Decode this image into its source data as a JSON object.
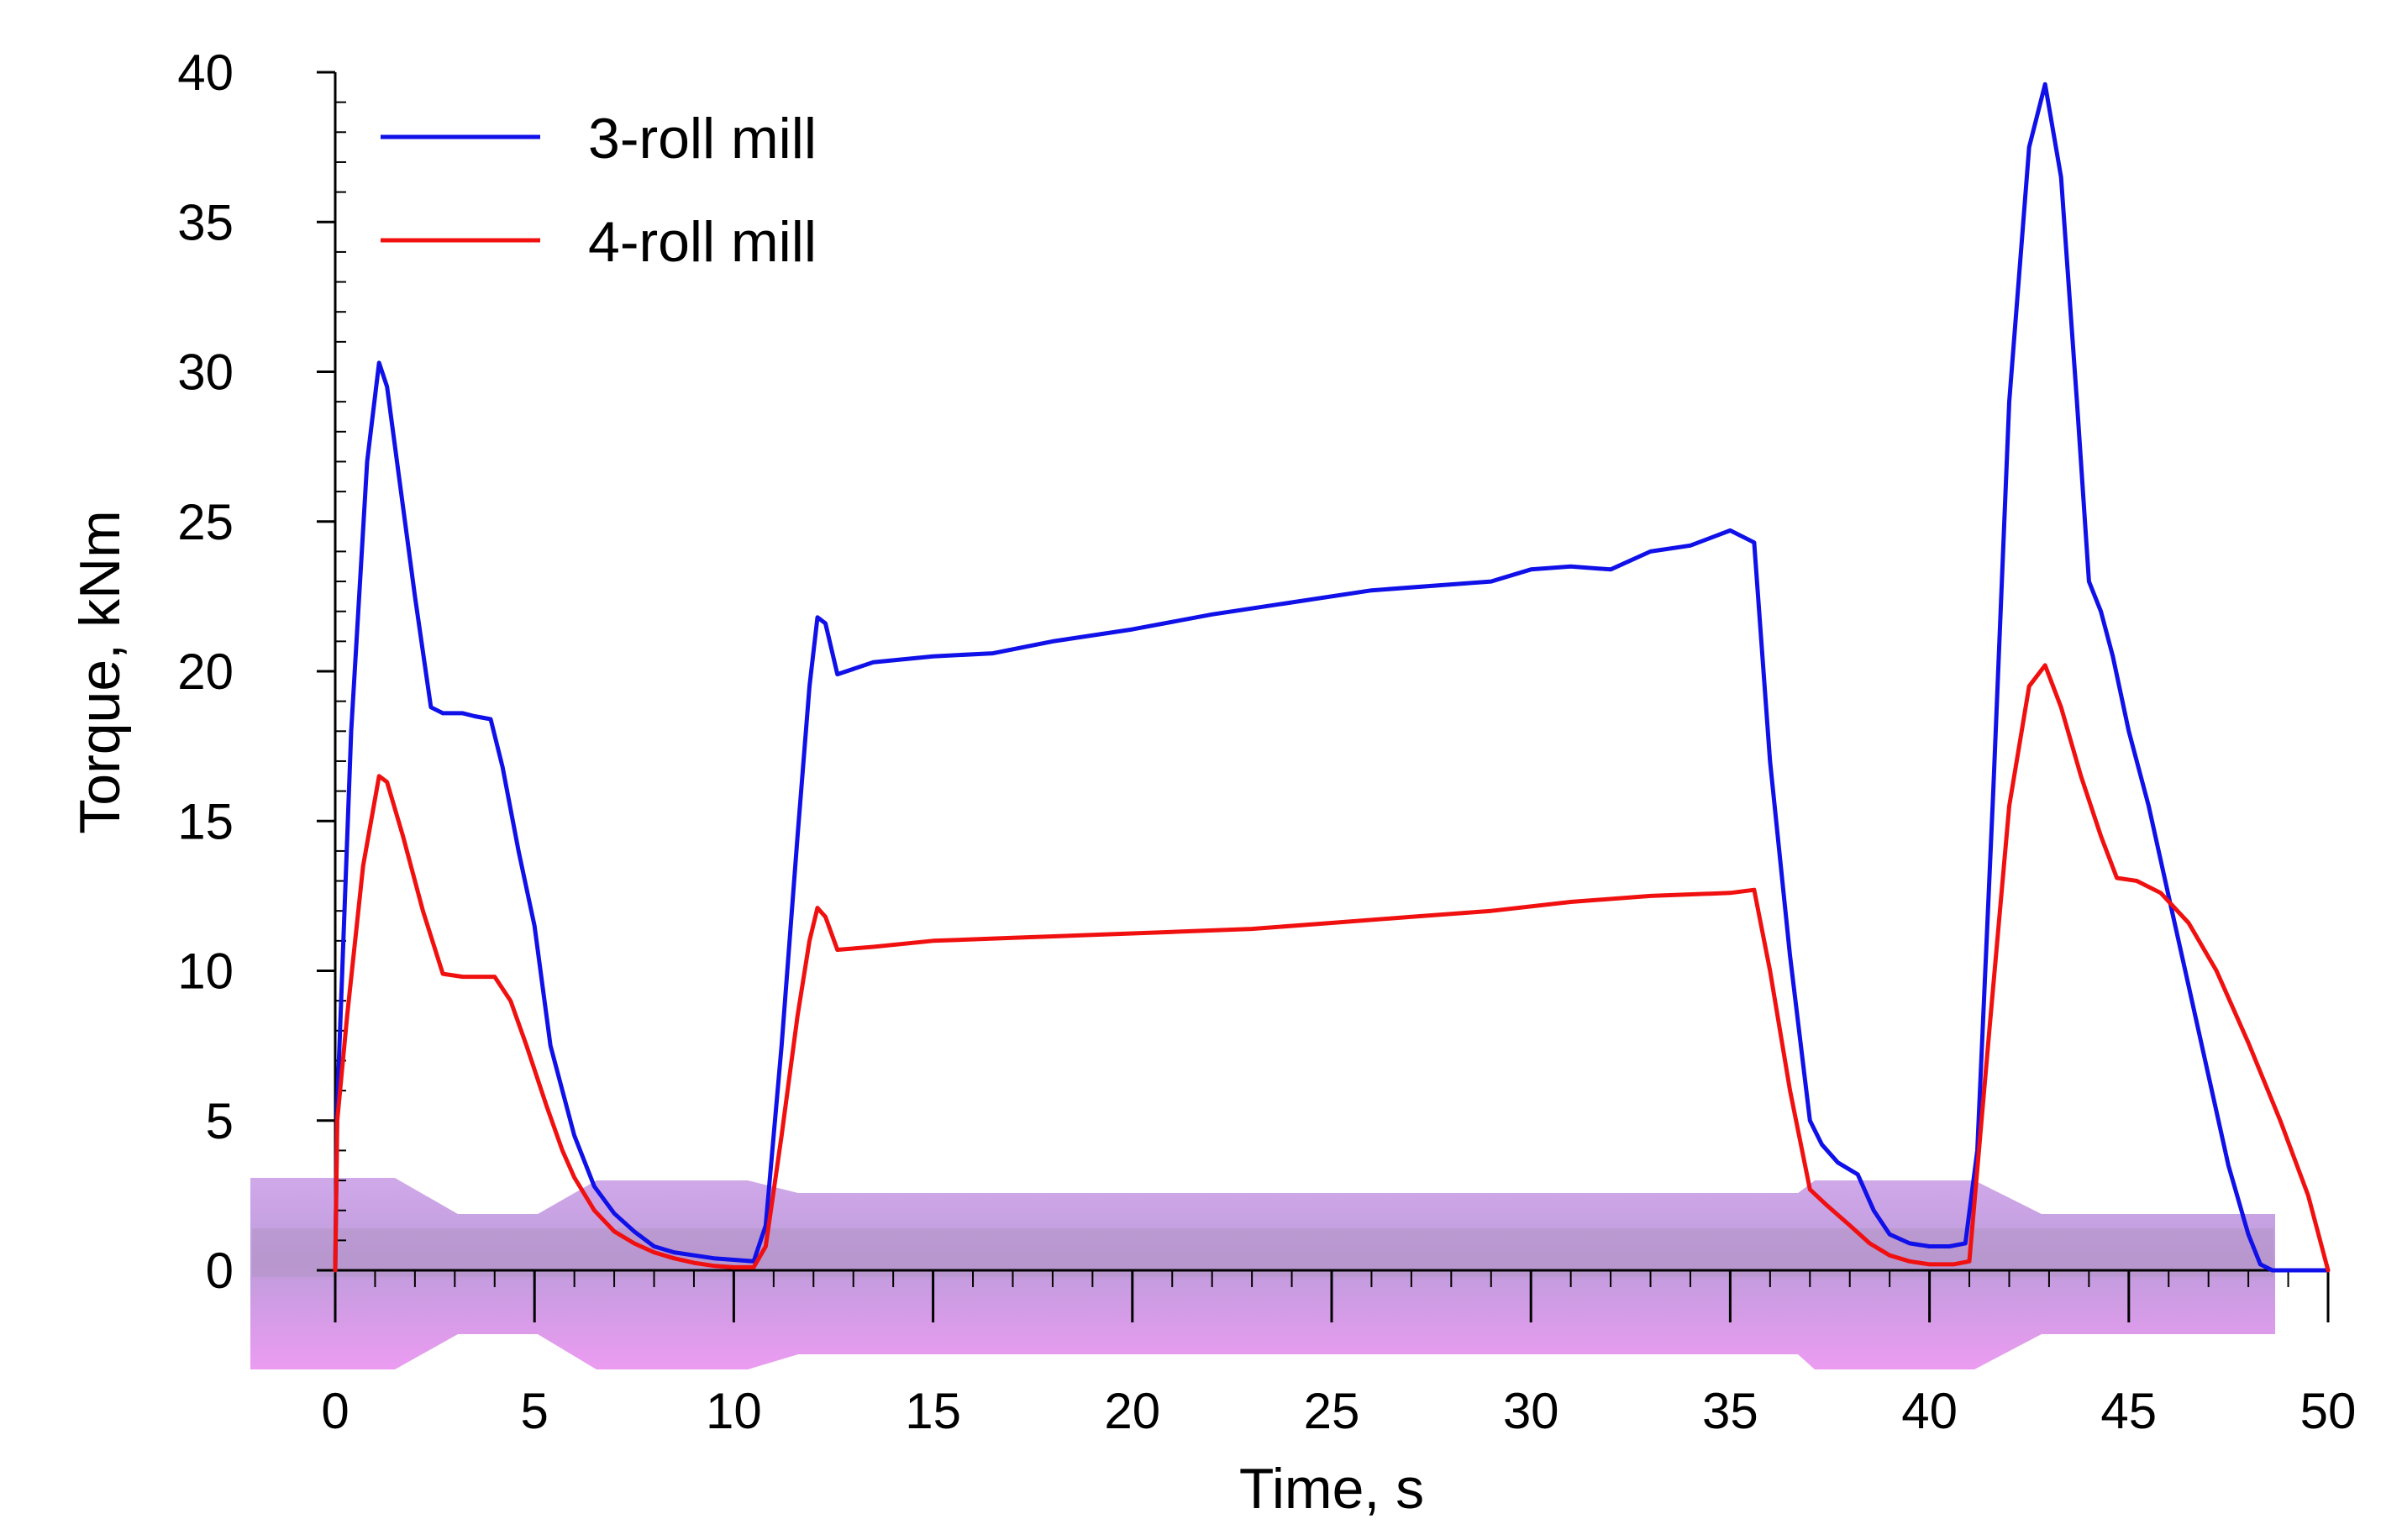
{
  "chart_data": {
    "type": "line",
    "title": "",
    "xlabel": "Time, s",
    "ylabel": "Torque, kNm",
    "xlim": [
      0,
      50
    ],
    "ylim": [
      0,
      40
    ],
    "xticks": [
      0,
      5,
      10,
      15,
      20,
      25,
      30,
      35,
      40,
      45,
      50
    ],
    "yticks": [
      0,
      5,
      10,
      15,
      20,
      25,
      30,
      35,
      40
    ],
    "x_minor_step": 1,
    "y_minor_step": 1,
    "grid": false,
    "legend_position": "top-left",
    "colors": {
      "blue": "#1010e8",
      "red": "#f01010",
      "band": "#cc88ee"
    },
    "series": [
      {
        "name": "3-roll mill",
        "color": "#1010e8",
        "x": [
          0,
          0.05,
          0.4,
          0.8,
          1.1,
          1.3,
          1.6,
          2.0,
          2.4,
          2.7,
          3.2,
          3.5,
          3.9,
          4.2,
          4.6,
          5.0,
          5.4,
          5.7,
          6.0,
          6.5,
          7.0,
          7.5,
          8.0,
          8.5,
          9.0,
          9.5,
          10.0,
          10.5,
          10.8,
          11.2,
          11.6,
          11.9,
          12.1,
          12.3,
          12.6,
          13.5,
          15.0,
          16.5,
          18.0,
          20.0,
          22.0,
          24.0,
          26.0,
          28.0,
          29.0,
          30.0,
          31.0,
          32.0,
          33.0,
          34.0,
          35.0,
          35.6,
          36.0,
          36.5,
          37.0,
          37.3,
          37.7,
          38.2,
          38.6,
          39.0,
          39.5,
          40.0,
          40.5,
          40.9,
          41.2,
          41.6,
          42.0,
          42.5,
          42.9,
          43.3,
          43.7,
          44.0,
          44.3,
          44.6,
          45.0,
          45.5,
          46.0,
          46.5,
          47.0,
          47.5,
          48.0,
          48.3,
          48.6,
          50.0
        ],
        "values": [
          0,
          5.5,
          18,
          27,
          30.3,
          29.5,
          26.5,
          22.5,
          18.8,
          18.6,
          18.6,
          18.5,
          18.4,
          16.8,
          14.0,
          11.5,
          7.5,
          6.0,
          4.5,
          2.8,
          1.9,
          1.3,
          0.8,
          0.6,
          0.5,
          0.4,
          0.35,
          0.3,
          1.5,
          7.5,
          14.5,
          19.5,
          21.8,
          21.6,
          19.9,
          20.3,
          20.5,
          20.6,
          21.0,
          21.4,
          21.9,
          22.3,
          22.7,
          22.9,
          23.0,
          23.4,
          23.5,
          23.4,
          24.0,
          24.2,
          24.7,
          24.3,
          17.0,
          10.5,
          5.0,
          4.2,
          3.6,
          3.2,
          2.0,
          1.2,
          0.9,
          0.8,
          0.8,
          0.9,
          4.0,
          16.0,
          29.0,
          37.5,
          39.6,
          36.5,
          29.0,
          23.0,
          22.0,
          20.5,
          18.0,
          15.5,
          12.5,
          9.5,
          6.5,
          3.5,
          1.2,
          0.2,
          0,
          0
        ]
      },
      {
        "name": "4-roll mill",
        "color": "#f01010",
        "x": [
          0,
          0.05,
          0.3,
          0.7,
          1.1,
          1.3,
          1.7,
          2.2,
          2.7,
          3.2,
          3.6,
          4.0,
          4.4,
          4.8,
          5.3,
          5.7,
          6.0,
          6.5,
          7.0,
          7.5,
          8.0,
          8.5,
          9.0,
          9.5,
          10.0,
          10.5,
          10.8,
          11.2,
          11.6,
          11.9,
          12.1,
          12.3,
          12.6,
          13.5,
          15.0,
          17.0,
          19.0,
          21.0,
          23.0,
          25.0,
          27.0,
          29.0,
          31.0,
          33.0,
          35.0,
          35.6,
          36.0,
          36.5,
          37.0,
          37.4,
          38.0,
          38.5,
          39.0,
          39.5,
          40.0,
          40.6,
          41.0,
          41.5,
          42.0,
          42.5,
          42.9,
          43.3,
          43.8,
          44.3,
          44.7,
          45.2,
          45.8,
          46.5,
          47.2,
          48.0,
          48.8,
          49.5,
          50.0
        ],
        "values": [
          0,
          5.0,
          8.5,
          13.5,
          16.5,
          16.3,
          14.5,
          12.0,
          9.9,
          9.8,
          9.8,
          9.8,
          9.0,
          7.5,
          5.5,
          4.0,
          3.1,
          2.0,
          1.3,
          0.9,
          0.6,
          0.4,
          0.25,
          0.15,
          0.1,
          0.1,
          0.8,
          4.5,
          8.5,
          11.0,
          12.1,
          11.8,
          10.7,
          10.8,
          11.0,
          11.1,
          11.2,
          11.3,
          11.4,
          11.6,
          11.8,
          12.0,
          12.3,
          12.5,
          12.6,
          12.7,
          10.0,
          6.0,
          2.7,
          2.2,
          1.5,
          0.9,
          0.5,
          0.3,
          0.2,
          0.2,
          0.3,
          8.0,
          15.5,
          19.5,
          20.2,
          18.8,
          16.5,
          14.5,
          13.1,
          13.0,
          12.6,
          11.6,
          10.0,
          7.6,
          5.0,
          2.5,
          0
        ]
      }
    ],
    "background_band_description": "semi-transparent purple rolling mill profile shading along time axis"
  }
}
